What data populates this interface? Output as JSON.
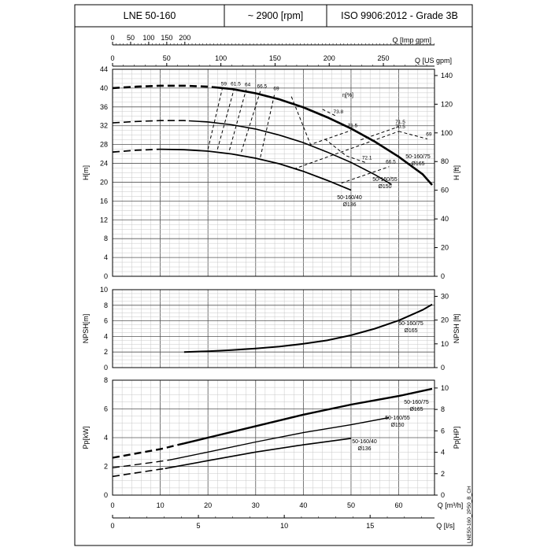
{
  "header": {
    "model": "LNE 50-160",
    "speed": "~ 2900 [rpm]",
    "norm": "ISO 9906:2012 - Grade 3B"
  },
  "drawing_code": "LNE50-160_2P50_B_CH",
  "chart_data": [
    {
      "type": "line",
      "name": "head",
      "xlabel": "Q [m³/h]",
      "ylabel": "H[m]",
      "ylabel_right": "H [ft]",
      "xlim": [
        0,
        67.5
      ],
      "ylim": [
        0,
        44
      ],
      "ylim_right": [
        0,
        144.36
      ],
      "y_ticks": [
        0,
        4,
        8,
        12,
        16,
        20,
        24,
        28,
        32,
        36,
        40,
        44
      ],
      "y_ticks_right": [
        0,
        20,
        40,
        60,
        80,
        100,
        120,
        140
      ],
      "top_axes": [
        {
          "label": "Q [Imp gpm]",
          "ticks": [
            0,
            50,
            100,
            150,
            200
          ]
        },
        {
          "label": "Q [US gpm]",
          "ticks": [
            0,
            50,
            100,
            150,
            200,
            250
          ]
        }
      ],
      "series": [
        {
          "name": "50-160/75 Ø165",
          "dashed_until": 21,
          "x": [
            0,
            5,
            10,
            15,
            20,
            25,
            30,
            35,
            40,
            45,
            50,
            55,
            60,
            65,
            67
          ],
          "y": [
            40,
            40.3,
            40.5,
            40.5,
            40.3,
            39.8,
            38.9,
            37.6,
            35.9,
            33.8,
            31.4,
            28.6,
            25.4,
            21.7,
            19.4
          ]
        },
        {
          "name": "50-160/55 Ø150",
          "dashed_until": 16,
          "x": [
            0,
            5,
            10,
            15,
            20,
            25,
            30,
            35,
            40,
            45,
            50,
            55,
            58.5
          ],
          "y": [
            32.6,
            32.9,
            33.1,
            33.1,
            32.8,
            32.2,
            31.3,
            30.0,
            28.4,
            26.4,
            24.2,
            21.6,
            19.5
          ]
        },
        {
          "name": "50-160/40 Ø136",
          "dashed_until": 10,
          "x": [
            0,
            5,
            10,
            15,
            20,
            25,
            30,
            35,
            40,
            45,
            50
          ],
          "y": [
            26.4,
            26.8,
            27.0,
            26.9,
            26.6,
            26.0,
            25.1,
            23.9,
            22.3,
            20.4,
            18.3
          ]
        }
      ],
      "efficiency_label": "η[%]",
      "efficiency": [
        {
          "label": "59",
          "x": [
            20,
            23
          ],
          "y": [
            27,
            39.9
          ]
        },
        {
          "label": "61.5",
          "x": [
            22,
            25.5
          ],
          "y": [
            27,
            39.9
          ]
        },
        {
          "label": "64",
          "x": [
            24.5,
            28
          ],
          "y": [
            26.8,
            39.7
          ]
        },
        {
          "label": "66.5",
          "x": [
            27,
            31
          ],
          "y": [
            26.4,
            39.4
          ]
        },
        {
          "label": "69",
          "x": [
            31,
            34
          ],
          "y": [
            25.3,
            38.9
          ]
        },
        {
          "label": "71.5",
          "x": [
            37.5,
            41.5,
            50
          ],
          "y": [
            38.2,
            28,
            31
          ]
        },
        {
          "label": "73.8",
          "x": [
            44,
            47
          ],
          "y": [
            35.5,
            34
          ]
        },
        {
          "label": "72.1",
          "x": [
            44.5,
            49,
            53
          ],
          "y": [
            29.2,
            25.6,
            24.2
          ]
        },
        {
          "label": "70.5",
          "x": [
            38,
            60
          ],
          "y": [
            22.8,
            30.8
          ]
        },
        {
          "label": "71.5",
          "x": [
            52,
            60
          ],
          "y": [
            29,
            31.8
          ]
        },
        {
          "label": "66.5",
          "x": [
            48,
            58
          ],
          "y": [
            19.8,
            23.3
          ]
        },
        {
          "label": "69",
          "x": [
            60,
            66
          ],
          "y": [
            30.8,
            29.2
          ]
        }
      ]
    },
    {
      "type": "line",
      "name": "npsh",
      "xlabel": "Q [m³/h]",
      "ylabel": "NPSH[m]",
      "ylabel_right": "NPSH [ft]",
      "xlim": [
        0,
        67.5
      ],
      "ylim": [
        0,
        10
      ],
      "y_ticks": [
        0,
        2,
        4,
        6,
        8,
        10
      ],
      "y_ticks_right": [
        0,
        10,
        20,
        30
      ],
      "series": [
        {
          "name": "50-160/75 Ø165",
          "x": [
            15,
            20,
            25,
            30,
            35,
            40,
            45,
            50,
            55,
            60,
            65,
            67
          ],
          "y": [
            2.0,
            2.1,
            2.25,
            2.45,
            2.7,
            3.05,
            3.5,
            4.15,
            5.0,
            6.05,
            7.4,
            8.1
          ]
        }
      ]
    },
    {
      "type": "line",
      "name": "power",
      "xlabel": "Q [m³/h]",
      "ylabel": "Pp[kW]",
      "ylabel_right": "Pp[HP]",
      "xlim": [
        0,
        67.5
      ],
      "ylim": [
        0,
        8
      ],
      "x_ticks": [
        0,
        10,
        20,
        30,
        40,
        50,
        60
      ],
      "y_ticks": [
        0,
        2,
        4,
        6,
        8
      ],
      "y_ticks_right": [
        0,
        2,
        4,
        6,
        8,
        10
      ],
      "bottom_axis2": {
        "label": "Q [l/s]",
        "ticks": [
          0,
          5,
          10,
          15
        ]
      },
      "series": [
        {
          "name": "50-160/75 Ø165",
          "dashed_until": 15,
          "x": [
            0,
            10,
            15,
            20,
            30,
            40,
            50,
            60,
            67
          ],
          "y": [
            2.6,
            3.2,
            3.6,
            4.0,
            4.8,
            5.6,
            6.3,
            6.9,
            7.4
          ]
        },
        {
          "name": "50-160/55 Ø150",
          "dashed_until": 12,
          "x": [
            0,
            10,
            12,
            20,
            30,
            40,
            50,
            58
          ],
          "y": [
            1.9,
            2.35,
            2.45,
            3.0,
            3.7,
            4.35,
            4.9,
            5.4
          ]
        },
        {
          "name": "50-160/40 Ø136",
          "dashed_until": 11,
          "x": [
            0,
            10,
            11,
            20,
            30,
            40,
            50
          ],
          "y": [
            1.3,
            1.8,
            1.85,
            2.4,
            3.0,
            3.5,
            3.95
          ]
        }
      ]
    }
  ]
}
